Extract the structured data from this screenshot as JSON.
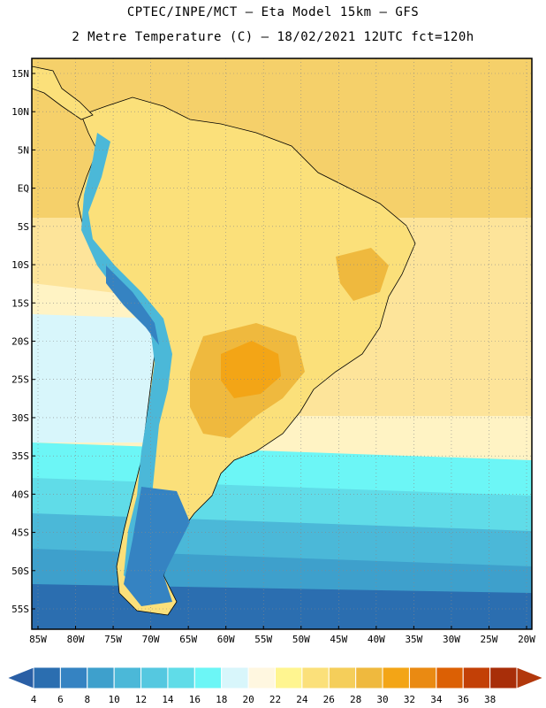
{
  "header": {
    "line1": "CPTEC/INPE/MCT –  Eta Model 15km – GFS",
    "line2": "2 Metre Temperature (C) – 18/02/2021 12UTC fct=120h"
  },
  "lat_labels": [
    "15N",
    "10N",
    "5N",
    "EQ",
    "5S",
    "10S",
    "15S",
    "20S",
    "25S",
    "30S",
    "35S",
    "40S",
    "45S",
    "50S",
    "55S"
  ],
  "lat_values": [
    15,
    10,
    5,
    0,
    -5,
    -10,
    -15,
    -20,
    -25,
    -30,
    -35,
    -40,
    -45,
    -50,
    -55
  ],
  "lon_labels": [
    "85W",
    "80W",
    "75W",
    "70W",
    "65W",
    "60W",
    "55W",
    "50W",
    "45W",
    "40W",
    "35W",
    "30W",
    "25W",
    "20W"
  ],
  "lon_values": [
    -85,
    -80,
    -75,
    -70,
    -65,
    -60,
    -55,
    -50,
    -45,
    -40,
    -35,
    -30,
    -25,
    -20
  ],
  "legend": {
    "labels": [
      "4",
      "6",
      "8",
      "10",
      "12",
      "14",
      "16",
      "18",
      "20",
      "22",
      "24",
      "26",
      "28",
      "30",
      "32",
      "34",
      "36",
      "38"
    ],
    "colors": [
      "#2b6eb0",
      "#3583c2",
      "#3ea0cc",
      "#4bb8d8",
      "#55c8e0",
      "#60dce8",
      "#6cf6f6",
      "#d8f6fb",
      "#fff7e0",
      "#fff590",
      "#fbe07a",
      "#f5ce5a",
      "#efb93e",
      "#f3a516",
      "#ea8a12",
      "#dc6004",
      "#c34006",
      "#a82e09"
    ],
    "under_color": "#2a5fa5",
    "over_color": "#b2380c"
  },
  "palette": {
    "ocean_warm": "#fde49a",
    "ocean_mild": "#fff3c4",
    "ocean_cool": "#d8f6fb",
    "land": "#fbe07a",
    "land_hot": "#efb93e",
    "land_very_hot": "#f3a516",
    "andes_cold": "#4bb8d8",
    "andes_colder": "#3583c2",
    "south_cold": "#2b6eb0"
  }
}
